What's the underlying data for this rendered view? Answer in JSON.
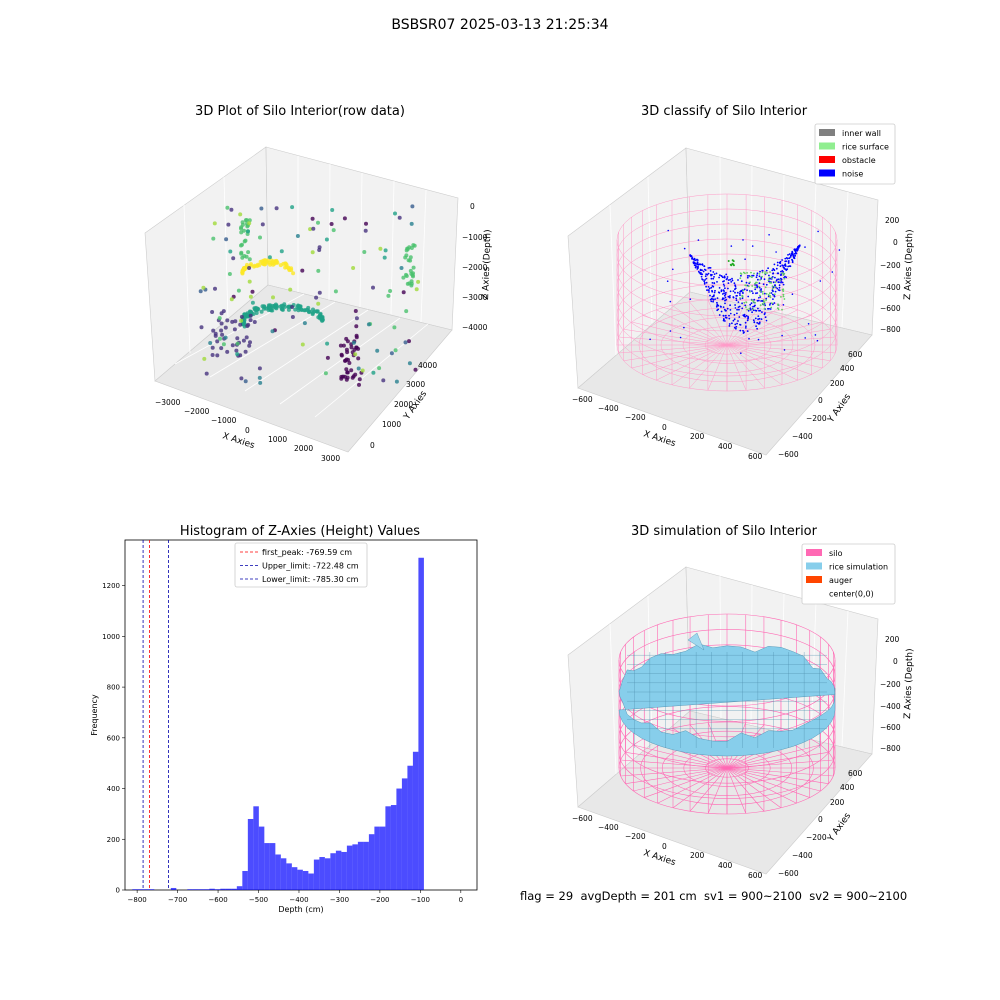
{
  "suptitle": "BSBSR07 2025-03-13 21:25:34",
  "panels": {
    "raw": {
      "title": "3D Plot of Silo Interior(row data)",
      "xlabel": "X Axies",
      "ylabel": "Y Axies",
      "zlabel": "Z Axies (Depth)",
      "xticks": [
        "−3000",
        "−2000",
        "−1000",
        "0",
        "1000",
        "2000",
        "3000"
      ],
      "yticks": [
        "0",
        "1000",
        "2000",
        "3000",
        "4000"
      ],
      "zticks": [
        "0",
        "−1000",
        "−2000",
        "−3000",
        "−4000"
      ]
    },
    "classify": {
      "title": "3D classify of Silo Interior",
      "xlabel": "X Axies",
      "ylabel": "Y Axies",
      "zlabel": "Z Axies (Depth)",
      "xticks": [
        "−600",
        "−400",
        "−200",
        "0",
        "200",
        "400",
        "600"
      ],
      "yticks": [
        "−600",
        "−400",
        "−200",
        "0",
        "200",
        "400",
        "600"
      ],
      "zticks": [
        "200",
        "0",
        "−200",
        "−400",
        "−600",
        "−800"
      ],
      "legend": [
        {
          "label": "inner wall",
          "color": "#808080"
        },
        {
          "label": "rice surface",
          "color": "#90ee90"
        },
        {
          "label": "obstacle",
          "color": "#ff0000"
        },
        {
          "label": "noise",
          "color": "#0000ff"
        }
      ]
    },
    "simulation": {
      "title": "3D simulation of Silo Interior",
      "xlabel": "X Axies",
      "ylabel": "Y Axies",
      "zlabel": "Z Axies (Depth)",
      "xticks": [
        "−600",
        "−400",
        "−200",
        "0",
        "200",
        "400",
        "600"
      ],
      "yticks": [
        "−600",
        "−400",
        "−200",
        "0",
        "200",
        "400",
        "600"
      ],
      "zticks": [
        "200",
        "0",
        "−200",
        "−400",
        "−600",
        "−800"
      ],
      "legend": [
        {
          "label": "silo",
          "color": "#ff69b4"
        },
        {
          "label": "rice simulation",
          "color": "#87ceeb"
        },
        {
          "label": "auger",
          "color": "#ff4500"
        },
        {
          "label": "center(0,0)",
          "color": "none"
        }
      ]
    }
  },
  "chart_data": {
    "type": "histogram",
    "title": "Histogram of Z-Axies (Height) Values",
    "xlabel": "Depth (cm)",
    "ylabel": "Frequency",
    "xlim": [
      -830,
      40
    ],
    "ylim": [
      0,
      1380
    ],
    "xticks": [
      -800,
      -700,
      -600,
      -500,
      -400,
      -300,
      -200,
      -100,
      0
    ],
    "xtick_labels": [
      "−800",
      "−700",
      "−600",
      "−500",
      "−400",
      "−300",
      "−200",
      "−100",
      "0"
    ],
    "yticks": [
      0,
      200,
      400,
      600,
      800,
      1000,
      1200
    ],
    "ytick_labels": [
      "0",
      "200",
      "400",
      "600",
      "800",
      "1000",
      "1200"
    ],
    "bar_color": "#0000ff",
    "bin_start": -812,
    "bin_width": 13.6,
    "counts": [
      3,
      3,
      3,
      3,
      0,
      0,
      0,
      8,
      0,
      0,
      3,
      3,
      3,
      3,
      5,
      3,
      5,
      5,
      5,
      15,
      75,
      280,
      330,
      250,
      185,
      185,
      140,
      125,
      105,
      90,
      80,
      75,
      65,
      120,
      130,
      125,
      145,
      155,
      150,
      175,
      180,
      190,
      190,
      220,
      250,
      250,
      330,
      335,
      400,
      440,
      490,
      545,
      1310
    ],
    "vlines": [
      {
        "label": "first_peak: -769.59 cm",
        "x": -769.59,
        "color": "#ff0000"
      },
      {
        "label": "Upper_limit: -722.48 cm",
        "x": -722.48,
        "color": "#0000aa"
      },
      {
        "label": "Lower_limit: -785.30 cm",
        "x": -785.3,
        "color": "#0000aa"
      }
    ],
    "legend_position": "top-center"
  },
  "footer": "flag = 29  avgDepth = 201 cm  sv1 = 900~2100  sv2 = 900~2100"
}
